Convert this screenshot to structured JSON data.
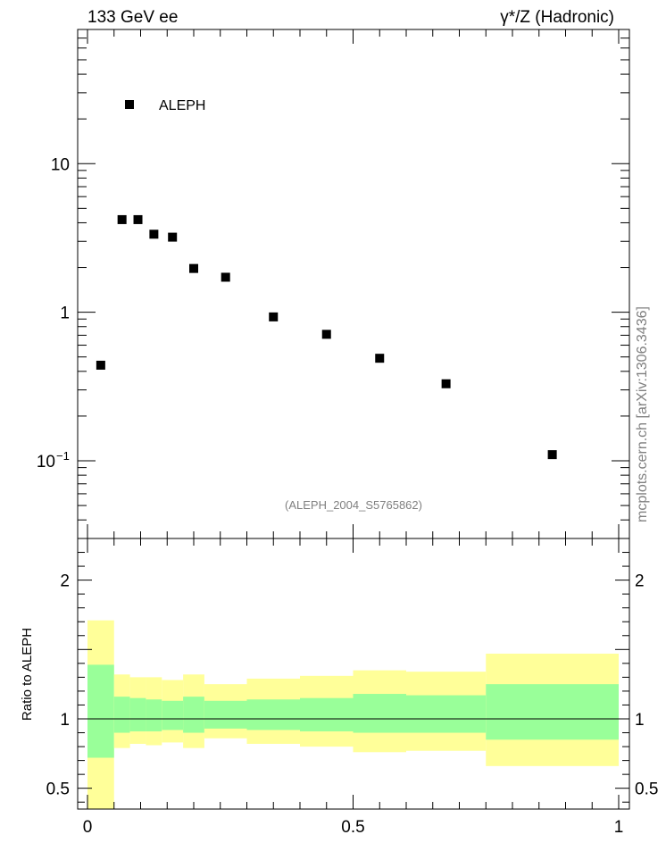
{
  "header": {
    "left": "133 GeV ee",
    "right": "γ*/Z (Hadronic)"
  },
  "watermark": "mcplots.cern.ch [arXiv:1306.3436]",
  "analysis_id": "(ALEPH_2004_S5765862)",
  "legend": {
    "entries": [
      "ALEPH"
    ]
  },
  "colors": {
    "band_outer": "#ffff99",
    "band_inner": "#99ff99",
    "marker": "#000000",
    "grey_text": "#808080"
  },
  "chart_data": [
    {
      "type": "scatter",
      "yscale": "log",
      "xlim": [
        0,
        1
      ],
      "ylim": [
        0.03,
        80
      ],
      "yticks": [
        {
          "value": 10,
          "label": "10"
        },
        {
          "value": 1,
          "label": "1"
        },
        {
          "value": 0.1,
          "label": "10",
          "exponent": "−1"
        }
      ],
      "series": [
        {
          "name": "ALEPH",
          "x": [
            0.025,
            0.065,
            0.095,
            0.125,
            0.16,
            0.2,
            0.26,
            0.35,
            0.45,
            0.55,
            0.675,
            0.875
          ],
          "y": [
            0.44,
            4.2,
            4.2,
            3.35,
            3.2,
            1.97,
            1.72,
            0.93,
            0.71,
            0.49,
            0.33,
            0.11
          ]
        }
      ]
    },
    {
      "type": "area",
      "ylabel": "Ratio to ALEPH",
      "xlim": [
        0,
        1
      ],
      "ylim": [
        0.35,
        2.3
      ],
      "xticks": [
        {
          "value": 0,
          "label": "0"
        },
        {
          "value": 0.5,
          "label": "0.5"
        },
        {
          "value": 1,
          "label": "1"
        }
      ],
      "yticks": [
        {
          "value": 2,
          "label": "2"
        },
        {
          "value": 1,
          "label": "1"
        },
        {
          "value": 0.5,
          "label": "0.5"
        }
      ],
      "reference_line": 1,
      "bins": [
        {
          "x0": 0.0,
          "x1": 0.05,
          "inner": [
            0.72,
            1.39
          ],
          "outer": [
            0.35,
            1.71
          ]
        },
        {
          "x0": 0.05,
          "x1": 0.08,
          "inner": [
            0.9,
            1.16
          ],
          "outer": [
            0.79,
            1.32
          ]
        },
        {
          "x0": 0.08,
          "x1": 0.11,
          "inner": [
            0.91,
            1.15
          ],
          "outer": [
            0.82,
            1.3
          ]
        },
        {
          "x0": 0.11,
          "x1": 0.14,
          "inner": [
            0.91,
            1.14
          ],
          "outer": [
            0.81,
            1.3
          ]
        },
        {
          "x0": 0.14,
          "x1": 0.18,
          "inner": [
            0.92,
            1.13
          ],
          "outer": [
            0.83,
            1.28
          ]
        },
        {
          "x0": 0.18,
          "x1": 0.22,
          "inner": [
            0.9,
            1.16
          ],
          "outer": [
            0.79,
            1.32
          ]
        },
        {
          "x0": 0.22,
          "x1": 0.3,
          "inner": [
            0.93,
            1.13
          ],
          "outer": [
            0.86,
            1.25
          ]
        },
        {
          "x0": 0.3,
          "x1": 0.4,
          "inner": [
            0.92,
            1.14
          ],
          "outer": [
            0.82,
            1.29
          ]
        },
        {
          "x0": 0.4,
          "x1": 0.5,
          "inner": [
            0.91,
            1.15
          ],
          "outer": [
            0.8,
            1.31
          ]
        },
        {
          "x0": 0.5,
          "x1": 0.6,
          "inner": [
            0.9,
            1.18
          ],
          "outer": [
            0.76,
            1.35
          ]
        },
        {
          "x0": 0.6,
          "x1": 0.75,
          "inner": [
            0.9,
            1.17
          ],
          "outer": [
            0.77,
            1.34
          ]
        },
        {
          "x0": 0.75,
          "x1": 1.0,
          "inner": [
            0.85,
            1.25
          ],
          "outer": [
            0.66,
            1.47
          ]
        }
      ]
    }
  ]
}
